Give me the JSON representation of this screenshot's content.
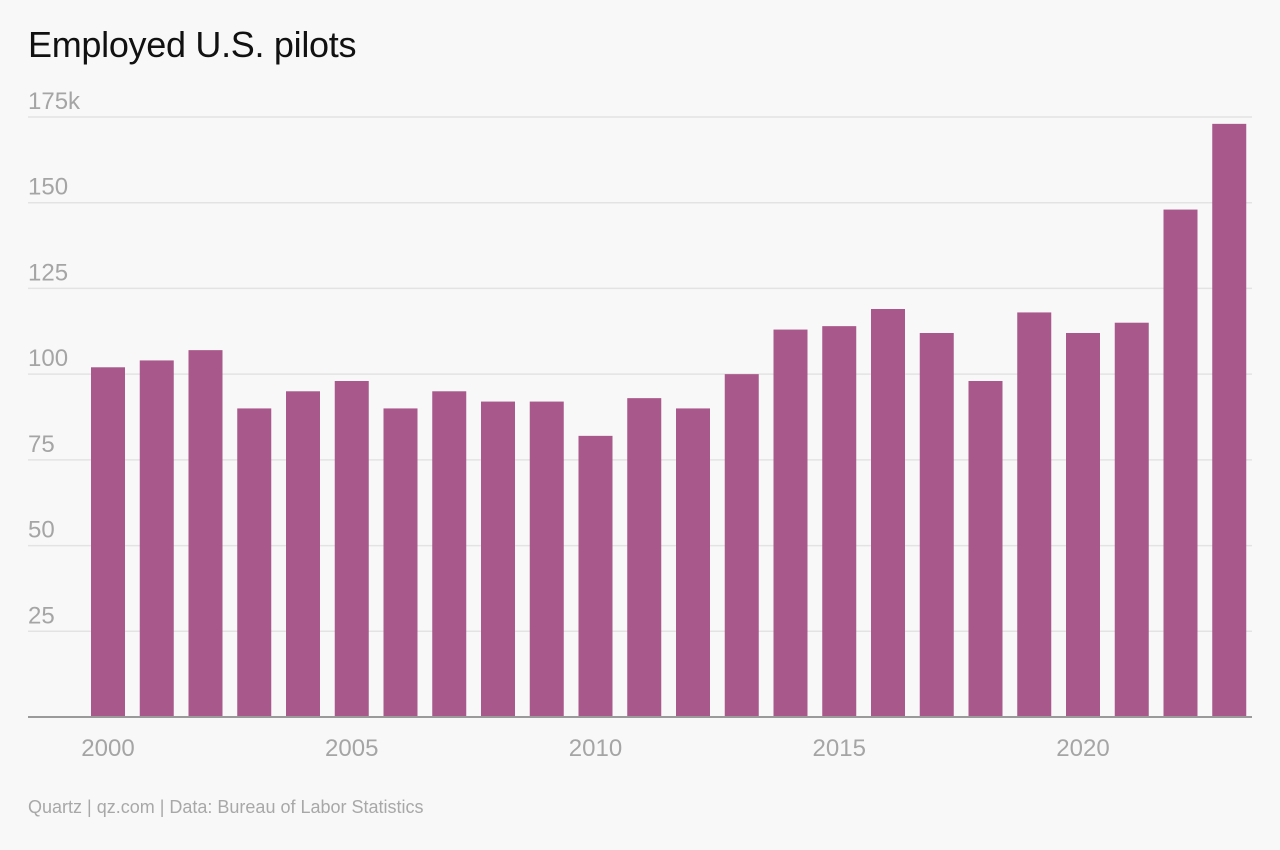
{
  "chart_data": {
    "type": "bar",
    "title": "Employed U.S. pilots",
    "xlabel": "",
    "ylabel": "",
    "categories": [
      "2000",
      "2001",
      "2002",
      "2003",
      "2004",
      "2005",
      "2006",
      "2007",
      "2008",
      "2009",
      "2010",
      "2011",
      "2012",
      "2013",
      "2014",
      "2015",
      "2016",
      "2017",
      "2018",
      "2019",
      "2020",
      "2021",
      "2022",
      "2023"
    ],
    "values": [
      102,
      104,
      107,
      90,
      95,
      98,
      90,
      95,
      92,
      92,
      82,
      93,
      90,
      100,
      113,
      114,
      119,
      112,
      98,
      118,
      112,
      115,
      148,
      173
    ],
    "ylim": [
      0,
      175
    ],
    "yticks": [
      {
        "value": 25,
        "label": "25"
      },
      {
        "value": 50,
        "label": "50"
      },
      {
        "value": 75,
        "label": "75"
      },
      {
        "value": 100,
        "label": "100"
      },
      {
        "value": 125,
        "label": "125"
      },
      {
        "value": 150,
        "label": "150"
      },
      {
        "value": 175,
        "label": "175k"
      }
    ],
    "xticks": [
      "2000",
      "2005",
      "2010",
      "2015",
      "2020"
    ],
    "grid": true,
    "bar_color": "#a8588a",
    "grid_color": "#e3e3e3",
    "axis_color": "#9a9a9a"
  },
  "footer": {
    "source": "Quartz | qz.com | Data: Bureau of Labor Statistics"
  }
}
